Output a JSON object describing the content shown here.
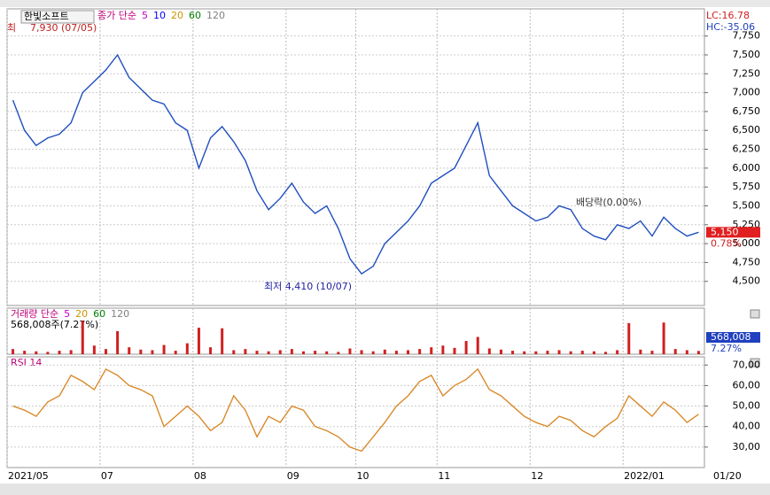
{
  "header": {
    "stock": "한빛소프트",
    "lc": "LC:16.78",
    "hc": "HC:-35.06",
    "last_date": "01/20"
  },
  "chart_data": [
    {
      "type": "line",
      "legend": [
        {
          "label": "종가 단순",
          "color": "#c0007a"
        },
        {
          "label": "5",
          "color": "#c000c0"
        },
        {
          "label": "10",
          "color": "#0000ff"
        },
        {
          "label": "20",
          "color": "#c89600"
        },
        {
          "label": "60",
          "color": "#008000"
        },
        {
          "label": "120",
          "color": "#808080"
        }
      ],
      "categories": [
        "2021/05",
        null,
        null,
        null,
        null,
        null,
        null,
        null,
        "07",
        null,
        null,
        null,
        null,
        null,
        null,
        null,
        "08",
        null,
        null,
        null,
        null,
        null,
        null,
        null,
        "09",
        null,
        null,
        null,
        null,
        null,
        "10",
        null,
        null,
        null,
        null,
        null,
        null,
        "11",
        null,
        null,
        null,
        null,
        null,
        null,
        null,
        "12",
        null,
        null,
        null,
        null,
        null,
        null,
        null,
        "2022/01",
        null,
        null,
        null,
        null,
        null,
        null
      ],
      "series": [
        {
          "name": "종가",
          "color": "#1f4fbf",
          "values": [
            6900,
            6500,
            6300,
            6400,
            6450,
            6600,
            7000,
            7150,
            7300,
            7500,
            7200,
            7050,
            6900,
            6850,
            6600,
            6500,
            6000,
            6400,
            6550,
            6350,
            6100,
            5700,
            5450,
            5600,
            5800,
            5550,
            5400,
            5500,
            5200,
            4800,
            4600,
            4700,
            5000,
            5150,
            5300,
            5500,
            5800,
            5900,
            6000,
            6300,
            6600,
            5900,
            5700,
            5500,
            5400,
            5300,
            5350,
            5500,
            5450,
            5200,
            5100,
            5050,
            5250,
            5200,
            5300,
            5100,
            5350,
            5200,
            5100,
            5150
          ]
        }
      ],
      "ylim": [
        4180,
        8110
      ],
      "yticks": [
        {
          "value": 4500,
          "label": "4,500"
        },
        {
          "value": 4750,
          "label": "4,750"
        },
        {
          "value": 5000,
          "label": "5,000"
        },
        {
          "value": 5250,
          "label": "5,250"
        },
        {
          "value": 5500,
          "label": "5,500"
        },
        {
          "value": 5750,
          "label": "5,750"
        },
        {
          "value": 6000,
          "label": "6,000"
        },
        {
          "value": 6250,
          "label": "6,250"
        },
        {
          "value": 6500,
          "label": "6,500"
        },
        {
          "value": 6750,
          "label": "6,750"
        },
        {
          "value": 7000,
          "label": "7,000"
        },
        {
          "value": 7250,
          "label": "7,250"
        },
        {
          "value": 7500,
          "label": "7,500"
        },
        {
          "value": 7750,
          "label": "7,750"
        }
      ],
      "current": {
        "value": 5150,
        "label": "5,150",
        "change": "0.78%"
      },
      "annotations": {
        "high": "7,930 (07/05)",
        "high_prefix": "최",
        "low": "최저 4,410 (10/07)",
        "dividend": "배당락(0.00%)"
      },
      "grid": true
    },
    {
      "type": "bar",
      "legend": [
        {
          "label": "거래량 단순",
          "color": "#c0007a"
        },
        {
          "label": "5",
          "color": "#c000c0"
        },
        {
          "label": "20",
          "color": "#c89600"
        },
        {
          "label": "60",
          "color": "#008000"
        },
        {
          "label": "120",
          "color": "#808080"
        }
      ],
      "summary": "568,008주(7.27%)",
      "values": [
        900000,
        600000,
        500000,
        400000,
        600000,
        700000,
        5800000,
        1500000,
        900000,
        4000000,
        1200000,
        800000,
        700000,
        1600000,
        600000,
        1900000,
        4600000,
        1200000,
        4500000,
        700000,
        900000,
        600000,
        500000,
        700000,
        900000,
        500000,
        600000,
        500000,
        400000,
        1000000,
        700000,
        500000,
        800000,
        600000,
        700000,
        900000,
        1200000,
        1500000,
        1100000,
        2300000,
        3000000,
        1000000,
        800000,
        600000,
        500000,
        500000,
        600000,
        700000,
        500000,
        600000,
        500000,
        400000,
        700000,
        5400000,
        800000,
        600000,
        5500000,
        900000,
        700000,
        568008
      ],
      "color": "#d02020",
      "ylim": [
        0,
        8000000
      ],
      "current": {
        "label": "568,008",
        "pct": "7.27%"
      }
    },
    {
      "type": "line",
      "legend": [
        {
          "label": "RSI 14",
          "color": "#c0007a"
        }
      ],
      "series": [
        {
          "name": "RSI 14",
          "color": "#d98a2b",
          "values": [
            50,
            48,
            45,
            52,
            55,
            65,
            62,
            58,
            68,
            65,
            60,
            58,
            55,
            40,
            45,
            50,
            45,
            38,
            42,
            55,
            48,
            35,
            45,
            42,
            50,
            48,
            40,
            38,
            35,
            30,
            28,
            35,
            42,
            50,
            55,
            62,
            65,
            55,
            60,
            63,
            68,
            58,
            55,
            50,
            45,
            42,
            40,
            45,
            43,
            38,
            35,
            40,
            44,
            55,
            50,
            45,
            52,
            48,
            42,
            46
          ]
        }
      ],
      "ylim": [
        20,
        74
      ],
      "yticks": [
        {
          "value": 30,
          "label": "30,00"
        },
        {
          "value": 40,
          "label": "40,00"
        },
        {
          "value": 50,
          "label": "50,00"
        },
        {
          "value": 60,
          "label": "60,00"
        },
        {
          "value": 70,
          "label": "70,00"
        }
      ],
      "grid": true
    }
  ]
}
